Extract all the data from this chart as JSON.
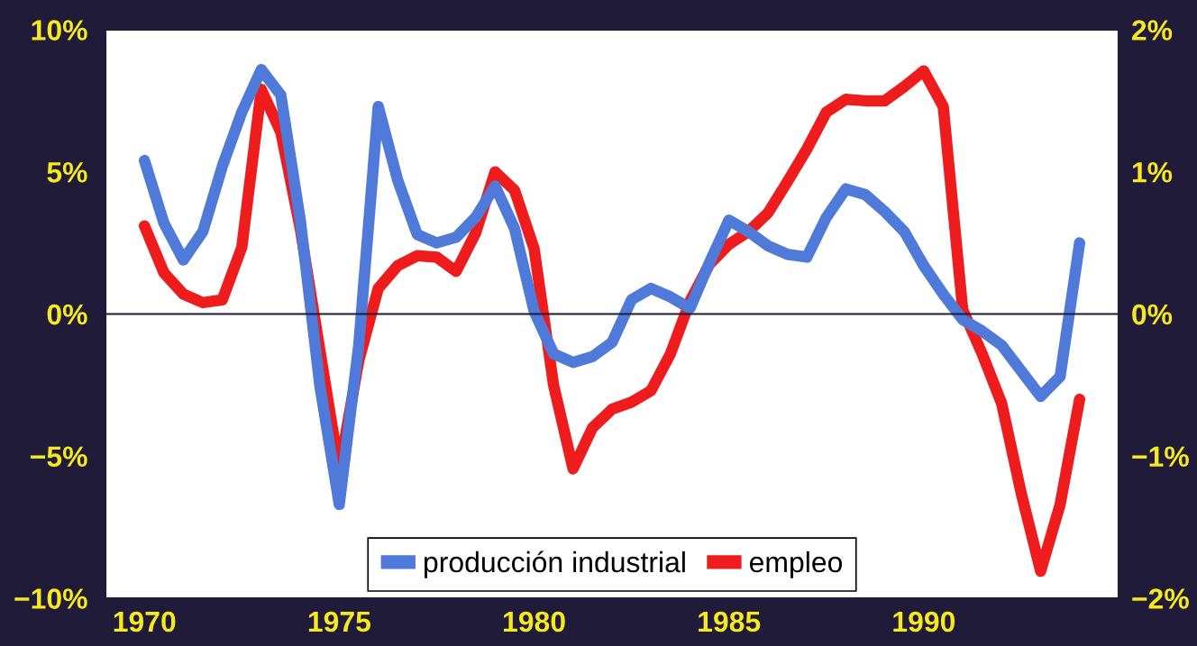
{
  "chart_data": {
    "type": "line",
    "x": [
      1970,
      1970.5,
      1971,
      1971.5,
      1972,
      1972.5,
      1973,
      1973.5,
      1974,
      1974.5,
      1975,
      1975.5,
      1976,
      1976.5,
      1977,
      1977.5,
      1978,
      1978.5,
      1979,
      1979.5,
      1980,
      1980.5,
      1981,
      1981.5,
      1982,
      1982.5,
      1983,
      1983.5,
      1984,
      1984.5,
      1985,
      1985.5,
      1986,
      1986.5,
      1987,
      1987.5,
      1988,
      1988.5,
      1989,
      1989.5,
      1990,
      1990.5,
      1991,
      1991.5,
      1992,
      1992.5,
      1993,
      1993.5,
      1994
    ],
    "series": [
      {
        "name": "producción industrial",
        "color": "#4f7ad9",
        "values": [
          5.4,
          3.2,
          1.9,
          2.9,
          5.2,
          7.1,
          8.6,
          7.7,
          3.3,
          -2.5,
          -6.7,
          -1.1,
          7.3,
          4.7,
          2.8,
          2.5,
          2.7,
          3.4,
          4.5,
          3.0,
          0.1,
          -1.4,
          -1.7,
          -1.5,
          -1.0,
          0.5,
          0.9,
          0.6,
          0.2,
          1.8,
          3.3,
          2.9,
          2.4,
          2.1,
          2.0,
          3.4,
          4.4,
          4.2,
          3.6,
          2.9,
          1.7,
          0.7,
          -0.2,
          -0.6,
          -1.1,
          -2.0,
          -2.9,
          -2.2,
          2.5
        ]
      },
      {
        "name": "empleo",
        "color": "#ee1c1c",
        "axis": "y2",
        "values": [
          0.62,
          0.29,
          0.14,
          0.08,
          0.1,
          0.47,
          1.58,
          1.28,
          0.6,
          -0.25,
          -1.1,
          -0.33,
          0.18,
          0.34,
          0.41,
          0.4,
          0.3,
          0.57,
          1.0,
          0.87,
          0.46,
          -0.5,
          -1.09,
          -0.8,
          -0.67,
          -0.62,
          -0.54,
          -0.28,
          0.09,
          0.35,
          0.49,
          0.58,
          0.71,
          0.93,
          1.16,
          1.42,
          1.51,
          1.5,
          1.5,
          1.6,
          1.71,
          1.46,
          0.03,
          -0.28,
          -0.63,
          -1.26,
          -1.81,
          -1.34,
          -0.6
        ]
      }
    ],
    "xlim": [
      1969,
      1995
    ],
    "xticks": [
      1970,
      1975,
      1980,
      1985,
      1990
    ],
    "ylim": [
      -10,
      10
    ],
    "yticks": [
      {
        "value": -10,
        "label": "−10%"
      },
      {
        "value": -5,
        "label": "−5%"
      },
      {
        "value": 0,
        "label": "0%"
      },
      {
        "value": 5,
        "label": "5%"
      },
      {
        "value": 10,
        "label": "10%"
      }
    ],
    "y2lim": [
      -2,
      2
    ],
    "y2ticks": [
      {
        "value": -2,
        "label": "−2%"
      },
      {
        "value": -1,
        "label": "−1%"
      },
      {
        "value": 0,
        "label": "0%"
      },
      {
        "value": 1,
        "label": "1%"
      },
      {
        "value": 2,
        "label": "2%"
      }
    ],
    "ref_lines": [
      {
        "axis": "y",
        "value": 0,
        "color": "#1f1b38"
      }
    ],
    "legend": "bottom",
    "line_style": "solid"
  }
}
